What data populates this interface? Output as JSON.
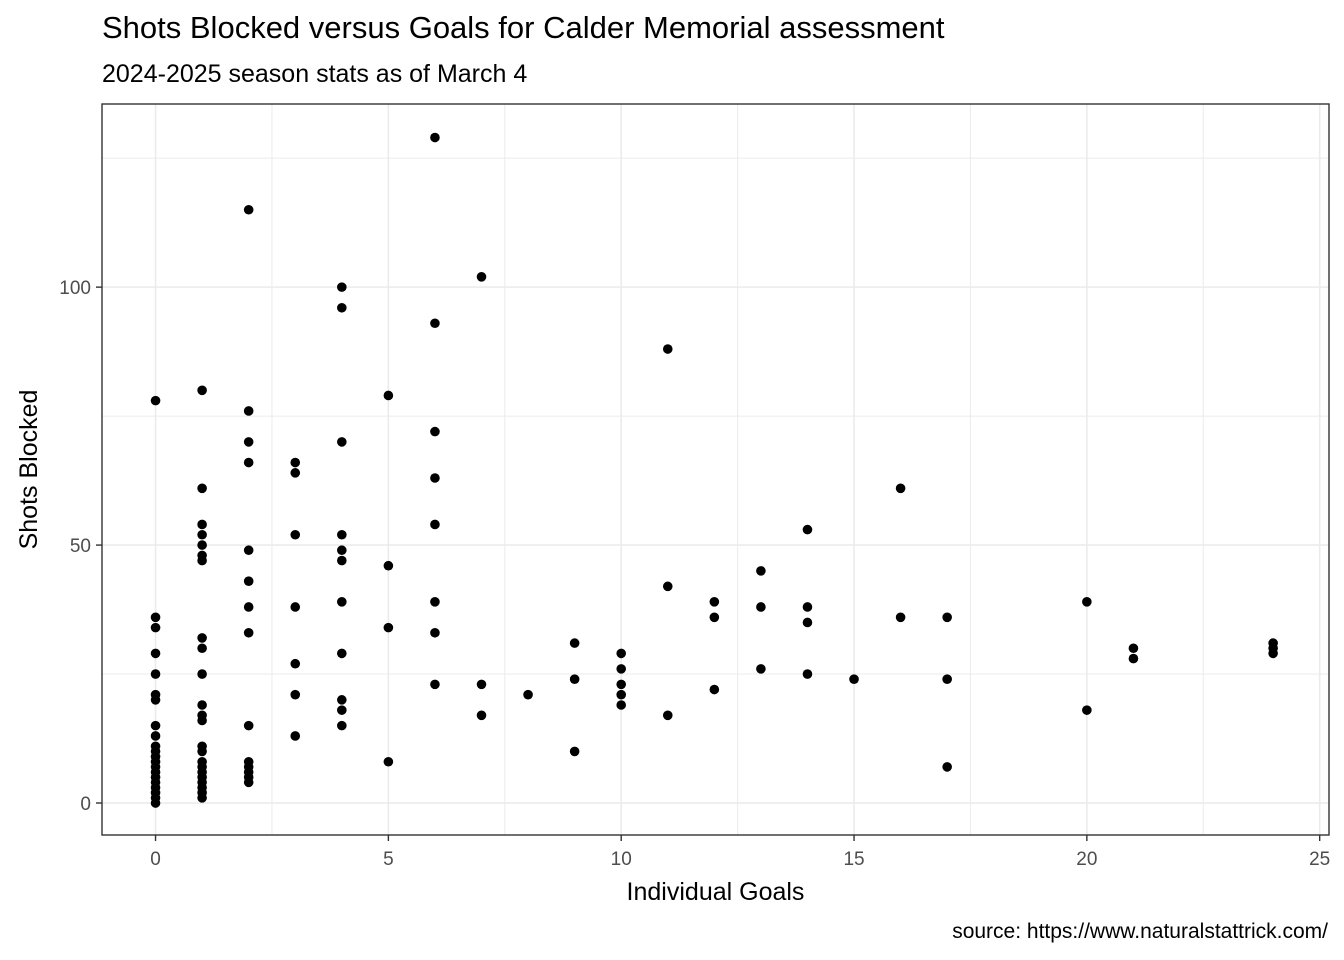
{
  "title": "Shots Blocked versus Goals for Calder Memorial assessment",
  "subtitle": "2024-2025 season stats as of March 4",
  "caption": "source: https://www.naturalstattrick.com/",
  "colors": {
    "point": "#000000",
    "grid": "#ebebeb",
    "panel_border": "#333333",
    "tick_text": "#4d4d4d"
  },
  "chart_data": {
    "type": "scatter",
    "xlabel": "Individual Goals",
    "ylabel": "Shots Blocked",
    "xlim": [
      -1.15,
      25.2
    ],
    "ylim": [
      -6.2,
      135.5
    ],
    "x_ticks": [
      0,
      5,
      10,
      15,
      20,
      25
    ],
    "y_ticks": [
      0,
      50,
      100
    ],
    "x_tick_labels": [
      "0",
      "5",
      "10",
      "15",
      "20",
      "25"
    ],
    "y_tick_labels": [
      "0",
      "50",
      "100"
    ],
    "grid": true,
    "points": [
      [
        0,
        78
      ],
      [
        0,
        36
      ],
      [
        0,
        34
      ],
      [
        0,
        29
      ],
      [
        0,
        25
      ],
      [
        0,
        21
      ],
      [
        0,
        20
      ],
      [
        0,
        15
      ],
      [
        0,
        13
      ],
      [
        0,
        11
      ],
      [
        0,
        10
      ],
      [
        0,
        9
      ],
      [
        0,
        8
      ],
      [
        0,
        7
      ],
      [
        0,
        6
      ],
      [
        0,
        5
      ],
      [
        0,
        4
      ],
      [
        0,
        3
      ],
      [
        0,
        2
      ],
      [
        0,
        1
      ],
      [
        0,
        0
      ],
      [
        1,
        80
      ],
      [
        1,
        61
      ],
      [
        1,
        54
      ],
      [
        1,
        52
      ],
      [
        1,
        50
      ],
      [
        1,
        48
      ],
      [
        1,
        47
      ],
      [
        1,
        32
      ],
      [
        1,
        30
      ],
      [
        1,
        25
      ],
      [
        1,
        19
      ],
      [
        1,
        17
      ],
      [
        1,
        16
      ],
      [
        1,
        11
      ],
      [
        1,
        10
      ],
      [
        1,
        8
      ],
      [
        1,
        7
      ],
      [
        1,
        6
      ],
      [
        1,
        5
      ],
      [
        1,
        4
      ],
      [
        1,
        3
      ],
      [
        1,
        2
      ],
      [
        1,
        1
      ],
      [
        2,
        115
      ],
      [
        2,
        76
      ],
      [
        2,
        70
      ],
      [
        2,
        66
      ],
      [
        2,
        49
      ],
      [
        2,
        43
      ],
      [
        2,
        38
      ],
      [
        2,
        33
      ],
      [
        2,
        15
      ],
      [
        2,
        8
      ],
      [
        2,
        7
      ],
      [
        2,
        6
      ],
      [
        2,
        5
      ],
      [
        2,
        4
      ],
      [
        3,
        66
      ],
      [
        3,
        64
      ],
      [
        3,
        52
      ],
      [
        3,
        38
      ],
      [
        3,
        27
      ],
      [
        3,
        21
      ],
      [
        3,
        13
      ],
      [
        4,
        100
      ],
      [
        4,
        96
      ],
      [
        4,
        70
      ],
      [
        4,
        52
      ],
      [
        4,
        49
      ],
      [
        4,
        47
      ],
      [
        4,
        39
      ],
      [
        4,
        29
      ],
      [
        4,
        20
      ],
      [
        4,
        18
      ],
      [
        4,
        15
      ],
      [
        5,
        79
      ],
      [
        5,
        46
      ],
      [
        5,
        34
      ],
      [
        5,
        8
      ],
      [
        6,
        129
      ],
      [
        6,
        93
      ],
      [
        6,
        72
      ],
      [
        6,
        63
      ],
      [
        6,
        54
      ],
      [
        6,
        39
      ],
      [
        6,
        33
      ],
      [
        6,
        23
      ],
      [
        7,
        102
      ],
      [
        7,
        23
      ],
      [
        7,
        17
      ],
      [
        8,
        21
      ],
      [
        9,
        31
      ],
      [
        9,
        24
      ],
      [
        9,
        10
      ],
      [
        10,
        29
      ],
      [
        10,
        26
      ],
      [
        10,
        23
      ],
      [
        10,
        21
      ],
      [
        10,
        19
      ],
      [
        11,
        88
      ],
      [
        11,
        42
      ],
      [
        11,
        17
      ],
      [
        12,
        39
      ],
      [
        12,
        36
      ],
      [
        12,
        22
      ],
      [
        13,
        45
      ],
      [
        13,
        38
      ],
      [
        13,
        26
      ],
      [
        14,
        53
      ],
      [
        14,
        38
      ],
      [
        14,
        35
      ],
      [
        14,
        25
      ],
      [
        15,
        24
      ],
      [
        16,
        61
      ],
      [
        16,
        36
      ],
      [
        17,
        36
      ],
      [
        17,
        24
      ],
      [
        17,
        7
      ],
      [
        20,
        39
      ],
      [
        20,
        18
      ],
      [
        21,
        30
      ],
      [
        21,
        28
      ],
      [
        24,
        31
      ],
      [
        24,
        30
      ],
      [
        24,
        29
      ]
    ]
  }
}
